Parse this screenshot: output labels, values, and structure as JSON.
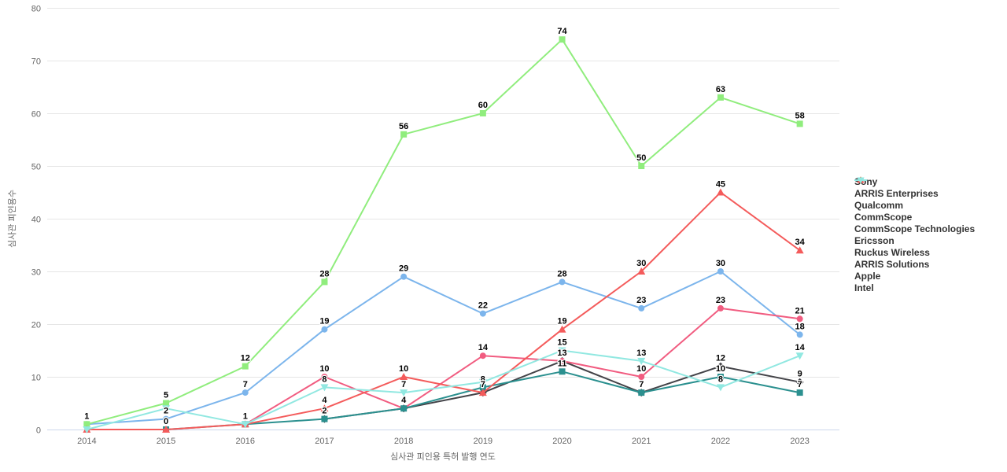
{
  "chart_data": {
    "type": "line",
    "title": "",
    "xlabel": "심사관 피인용 특허 발행 연도",
    "ylabel": "심사관 피인용수",
    "categories": [
      "2014",
      "2015",
      "2016",
      "2017",
      "2018",
      "2019",
      "2020",
      "2021",
      "2022",
      "2023"
    ],
    "ylim": [
      0,
      80
    ],
    "ytick_step": 10,
    "yticks": [
      "0",
      "10",
      "20",
      "30",
      "40",
      "50",
      "60",
      "70",
      "80"
    ],
    "grid": true,
    "legend_position": "right",
    "axis_line_color": "#ccd6eb",
    "grid_color": "#e6e6e6",
    "series": [
      {
        "name": "Sony",
        "color": "#7cb5ec",
        "marker": "circle",
        "values": [
          1,
          2,
          7,
          19,
          29,
          22,
          28,
          23,
          30,
          18
        ],
        "labels": [
          "1",
          "2",
          "7",
          "19",
          "29",
          "22",
          "28",
          "23",
          "30",
          "18"
        ]
      },
      {
        "name": "ARRIS Enterprises",
        "color": "#434348",
        "marker": "diamond",
        "values": [
          null,
          null,
          null,
          2,
          4,
          7,
          13,
          7,
          12,
          9
        ],
        "labels": [
          "",
          "",
          "",
          "2",
          "4",
          "7",
          "13",
          "7",
          "12",
          "9"
        ]
      },
      {
        "name": "Qualcomm",
        "color": "#90ed7d",
        "marker": "square",
        "values": [
          1,
          5,
          12,
          28,
          56,
          60,
          74,
          50,
          63,
          58
        ],
        "labels": [
          "1",
          "5",
          "12",
          "28",
          "56",
          "60",
          "74",
          "50",
          "63",
          "58"
        ]
      },
      {
        "name": "CommScope",
        "color": "#f7a35c",
        "marker": "triangle",
        "values": [],
        "labels": []
      },
      {
        "name": "CommScope Technologies",
        "color": "#8085e9",
        "marker": "triangle-down",
        "values": [],
        "labels": []
      },
      {
        "name": "Ericsson",
        "color": "#f15c80",
        "marker": "circle",
        "values": [
          null,
          null,
          1,
          10,
          4,
          14,
          13,
          10,
          23,
          21
        ],
        "labels": [
          "",
          "",
          "1",
          "10",
          "4",
          "14",
          "13",
          "10",
          "23",
          "21"
        ]
      },
      {
        "name": "Ruckus Wireless",
        "color": "#e4d354",
        "marker": "diamond",
        "values": [],
        "labels": []
      },
      {
        "name": "ARRIS Solutions",
        "color": "#2b908f",
        "marker": "square",
        "values": [
          null,
          0,
          1,
          2,
          4,
          8,
          11,
          7,
          10,
          7
        ],
        "labels": [
          "",
          "0",
          "1",
          "2",
          "4",
          "8",
          "11",
          "7",
          "10",
          "7"
        ]
      },
      {
        "name": "Apple",
        "color": "#f45b5b",
        "marker": "triangle",
        "values": [
          0,
          0,
          1,
          4,
          10,
          7,
          19,
          30,
          45,
          34
        ],
        "labels": [
          "",
          "0",
          "1",
          "4",
          "10",
          "7",
          "19",
          "30",
          "45",
          "34"
        ]
      },
      {
        "name": "Intel",
        "color": "#91e8e1",
        "marker": "triangle-down",
        "values": [
          0,
          4,
          1,
          8,
          7,
          9,
          15,
          13,
          8,
          14
        ],
        "labels": [
          "",
          "",
          "1",
          "8",
          "7",
          "",
          "15",
          "13",
          "8",
          "14"
        ]
      }
    ]
  }
}
